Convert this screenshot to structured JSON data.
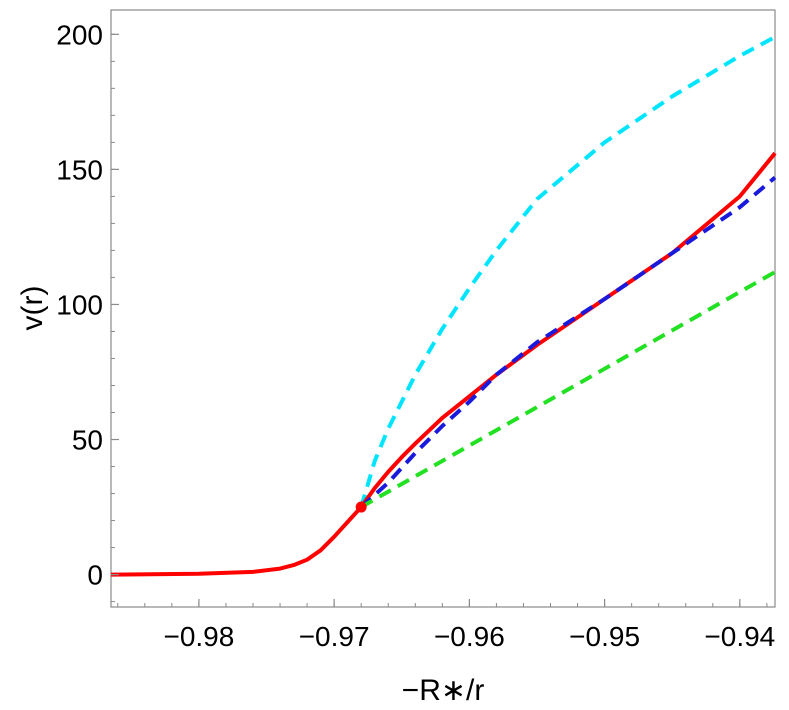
{
  "chart_data": {
    "type": "line",
    "title": "",
    "xlabel": "−R∗/r",
    "ylabel": "v(r)",
    "xlim": [
      -0.9865,
      -0.9374
    ],
    "ylim": [
      -12,
      209
    ],
    "grid": false,
    "x_ticks": [
      {
        "value": -0.98,
        "label": "−0.98"
      },
      {
        "value": -0.97,
        "label": "−0.97"
      },
      {
        "value": -0.96,
        "label": "−0.96"
      },
      {
        "value": -0.95,
        "label": "−0.95"
      },
      {
        "value": -0.94,
        "label": "−0.94"
      }
    ],
    "y_ticks": [
      {
        "value": 0,
        "label": "0"
      },
      {
        "value": 50,
        "label": "50"
      },
      {
        "value": 100,
        "label": "100"
      },
      {
        "value": 150,
        "label": "150"
      },
      {
        "value": 200,
        "label": "200"
      }
    ],
    "series": [
      {
        "color": "#00e5ff",
        "style": "dashed",
        "x": [
          -0.968,
          -0.967,
          -0.966,
          -0.964,
          -0.962,
          -0.96,
          -0.958,
          -0.955,
          -0.95,
          -0.945,
          -0.94,
          -0.9374
        ],
        "y": [
          25,
          42,
          54,
          74,
          91,
          106,
          120,
          139,
          160,
          177,
          192,
          199
        ]
      },
      {
        "color": "#ff0000",
        "style": "solid",
        "x": [
          -0.9865,
          -0.98,
          -0.976,
          -0.974,
          -0.973,
          -0.972,
          -0.971,
          -0.97,
          -0.969,
          -0.968,
          -0.967,
          -0.966,
          -0.965,
          -0.964,
          -0.962,
          -0.96,
          -0.958,
          -0.955,
          -0.95,
          -0.945,
          -0.94,
          -0.9374
        ],
        "y": [
          0,
          0.3,
          1,
          2.2,
          3.5,
          5.5,
          9,
          14,
          19.5,
          25,
          32,
          38,
          43.5,
          48.5,
          58,
          66,
          74,
          85,
          102,
          119,
          140,
          156
        ]
      },
      {
        "color": "#1a1adc",
        "style": "dashed",
        "x": [
          -0.968,
          -0.966,
          -0.964,
          -0.962,
          -0.96,
          -0.958,
          -0.955,
          -0.95,
          -0.945,
          -0.94,
          -0.9374
        ],
        "y": [
          25,
          34,
          45,
          55,
          64,
          74,
          86,
          102,
          119,
          136,
          147
        ]
      },
      {
        "color": "#22e022",
        "style": "dashed",
        "x": [
          -0.968,
          -0.9374
        ],
        "y": [
          25,
          112
        ]
      }
    ],
    "marker": {
      "x": -0.968,
      "y": 25,
      "color": "#ff0000"
    }
  }
}
